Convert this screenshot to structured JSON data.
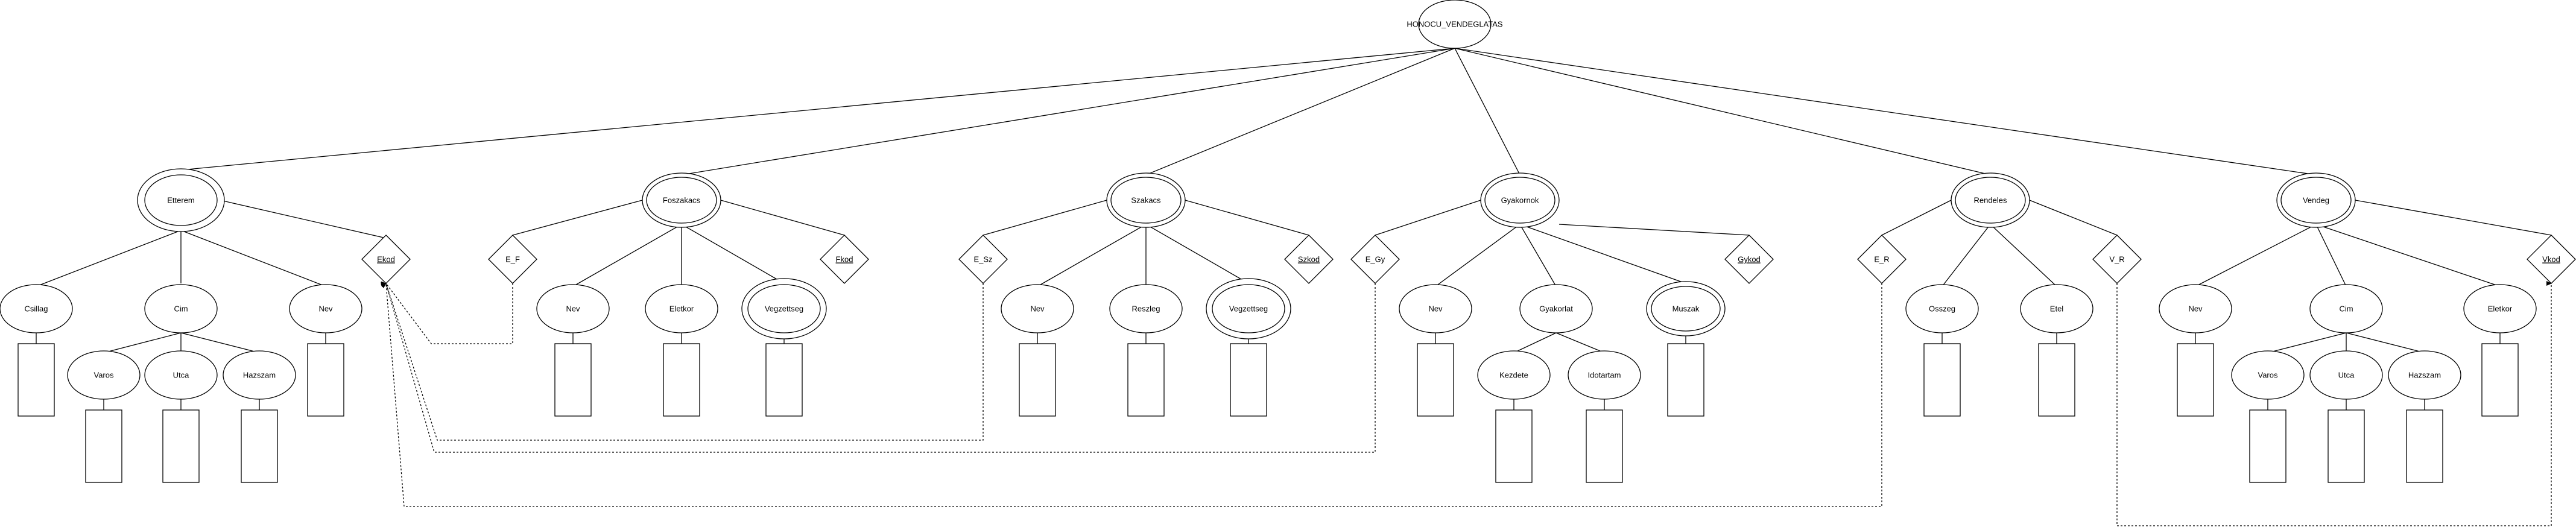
{
  "diagram": {
    "root": "HONOCU_VENDEGLATAS",
    "entities": {
      "etterem": "Etterem",
      "foszakacs": "Foszakacs",
      "szakacs": "Szakacs",
      "gyakornok": "Gyakornok",
      "rendeles": "Rendeles",
      "vendeg": "Vendeg"
    },
    "attributes": {
      "csillag": "Csillag",
      "cim1": "Cim",
      "nev1": "Nev",
      "varos1": "Varos",
      "utca1": "Utca",
      "hazszam1": "Hazszam",
      "nev2": "Nev",
      "eletkor2": "Eletkor",
      "vegzettseg2": "Vegzettseg",
      "nev3": "Nev",
      "reszleg3": "Reszleg",
      "vegzettseg3": "Vegzettseg",
      "nev4": "Nev",
      "gyakorlat4": "Gyakorlat",
      "muszak4": "Muszak",
      "kezdete4": "Kezdete",
      "idotartam4": "Idotartam",
      "osszeg5": "Osszeg",
      "etel5": "Etel",
      "nev6": "Nev",
      "cim6": "Cim",
      "eletkor6": "Eletkor",
      "varos6": "Varos",
      "utca6": "Utca",
      "hazszam6": "Hazszam"
    },
    "keys": {
      "ekod": "Ekod",
      "fkod": "Fkod",
      "szkod": "Szkod",
      "gykod": "Gykod",
      "vkod": "Vkod"
    },
    "refs": {
      "e_f": "E_F",
      "e_sz": "E_Sz",
      "e_gy": "E_Gy",
      "e_r": "E_R",
      "v_r": "V_R"
    }
  }
}
